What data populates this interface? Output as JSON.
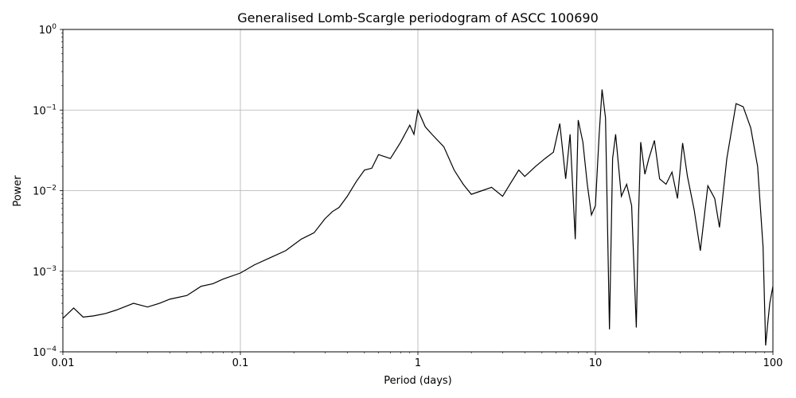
{
  "chart_data": {
    "type": "line",
    "title": "Generalised Lomb-Scargle periodogram of ASCC 100690",
    "xlabel": "Period (days)",
    "ylabel": "Power",
    "xscale": "log",
    "yscale": "log",
    "xlim": [
      0.01,
      100
    ],
    "ylim": [
      0.0001,
      1
    ],
    "grid": true,
    "line_color": "#000000",
    "x_ticks": [
      {
        "value": 0.01,
        "label": "0.01"
      },
      {
        "value": 0.1,
        "label": "0.1"
      },
      {
        "value": 1,
        "label": "1"
      },
      {
        "value": 10,
        "label": "10"
      },
      {
        "value": 100,
        "label": "100"
      }
    ],
    "y_ticks": [
      {
        "value": 0.0001,
        "base": "10",
        "exp": "−4"
      },
      {
        "value": 0.001,
        "base": "10",
        "exp": "−3"
      },
      {
        "value": 0.01,
        "base": "10",
        "exp": "−2"
      },
      {
        "value": 0.1,
        "base": "10",
        "exp": "−1"
      },
      {
        "value": 1,
        "base": "10",
        "exp": "0"
      }
    ],
    "series": [
      {
        "x": [
          0.01,
          0.0115,
          0.013,
          0.015,
          0.0175,
          0.02,
          0.025,
          0.03,
          0.035,
          0.04,
          0.05,
          0.06,
          0.07,
          0.08,
          0.1,
          0.12,
          0.15,
          0.18,
          0.22,
          0.26,
          0.3,
          0.33,
          0.36,
          0.4,
          0.45,
          0.5,
          0.55,
          0.6,
          0.7,
          0.8,
          0.9,
          0.95,
          1.0,
          1.1,
          1.2,
          1.4,
          1.6,
          1.8,
          2.0,
          2.3,
          2.6,
          3.0,
          3.3,
          3.7,
          4.0,
          4.6,
          5.2,
          5.8,
          6.3,
          6.8,
          7.2,
          7.7,
          8.0,
          8.5,
          9.0,
          9.5,
          10.0,
          10.5,
          10.9,
          11.4,
          12.0,
          12.5,
          13.0,
          14.0,
          15.0,
          16.0,
          17.0,
          17.5,
          18.0,
          19.0,
          20.0,
          21.5,
          23.0,
          25.0,
          27.0,
          29.0,
          31.0,
          33.0,
          36.0,
          39.0,
          43.0,
          47.0,
          50.0,
          55.0,
          62.0,
          68.0,
          75.0,
          82.0,
          88.0,
          91.0,
          93.0,
          96.0,
          100.0
        ],
        "y": [
          0.00026,
          0.00035,
          0.00027,
          0.00028,
          0.0003,
          0.00033,
          0.0004,
          0.00036,
          0.0004,
          0.00045,
          0.0005,
          0.00065,
          0.0007,
          0.0008,
          0.00095,
          0.0012,
          0.0015,
          0.0018,
          0.0025,
          0.003,
          0.0045,
          0.0055,
          0.0062,
          0.0085,
          0.013,
          0.018,
          0.019,
          0.028,
          0.025,
          0.04,
          0.065,
          0.05,
          0.1,
          0.062,
          0.05,
          0.035,
          0.018,
          0.012,
          0.009,
          0.01,
          0.011,
          0.0085,
          0.012,
          0.018,
          0.015,
          0.02,
          0.025,
          0.03,
          0.068,
          0.014,
          0.05,
          0.0025,
          0.075,
          0.04,
          0.012,
          0.005,
          0.0065,
          0.05,
          0.18,
          0.08,
          0.00019,
          0.025,
          0.05,
          0.0085,
          0.012,
          0.0065,
          0.0002,
          0.005,
          0.04,
          0.016,
          0.025,
          0.042,
          0.014,
          0.012,
          0.017,
          0.008,
          0.039,
          0.015,
          0.0058,
          0.0018,
          0.0115,
          0.008,
          0.0035,
          0.025,
          0.12,
          0.11,
          0.06,
          0.02,
          0.002,
          0.00012,
          0.0002,
          0.0004,
          0.00065
        ]
      }
    ]
  }
}
